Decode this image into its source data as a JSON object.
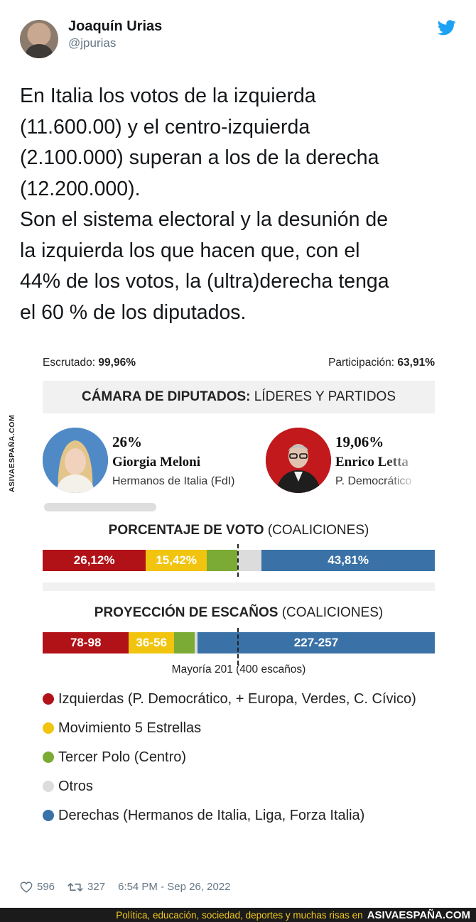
{
  "tweet": {
    "display_name": "Joaquín Urias",
    "handle": "@jpurias",
    "text_lines": [
      "En Italia los votos de la izquierda",
      "(11.600.00) y el centro-izquierda",
      "(2.100.000) superan a los de la derecha",
      "(12.200.000).",
      "Son el sistema electoral y la desunión de",
      "la izquierda los que hacen que, con el",
      "44% de los votos, la (ultra)derecha tenga",
      "el 60 % de los diputados."
    ],
    "likes": "596",
    "retweets": "327",
    "timestamp": "6:54 PM - Sep 26, 2022"
  },
  "graphic": {
    "escrutado_label": "Escrutado:",
    "escrutado_value": "99,96%",
    "participacion_label": "Participación:",
    "participacion_value": "63,91%",
    "camara_title_bold": "CÁMARA DE DIPUTADOS:",
    "camara_title_rest": "LÍDERES Y PARTIDOS",
    "leaders": [
      {
        "pct": "26%",
        "name": "Giorgia Meloni",
        "party": "Hermanos de Italia (FdI)"
      },
      {
        "pct": "19,06%",
        "name": "Enrico Letta",
        "party": "P. Democrático"
      }
    ],
    "vote_title_bold": "PORCENTAJE DE VOTO",
    "vote_title_rest": "(COALICIONES)",
    "vote_bar": [
      {
        "key": "izquierdas",
        "value": 26.12,
        "label": "26,12%"
      },
      {
        "key": "m5s",
        "value": 15.42,
        "label": "15,42%"
      },
      {
        "key": "tercer_polo",
        "value": 7.79,
        "label": ""
      },
      {
        "key": "otros",
        "value": 6.1,
        "label": ""
      },
      {
        "key": "derechas",
        "value": 43.81,
        "label": "43,81%"
      }
    ],
    "seats_title_bold": "PROYECCIÓN DE ESCAÑOS",
    "seats_title_rest": "(COALICIONES)",
    "seats_bar": [
      {
        "key": "izquierdas",
        "value": 88,
        "label": "78-98"
      },
      {
        "key": "m5s",
        "value": 46,
        "label": "36-56"
      },
      {
        "key": "tercer_polo",
        "value": 21,
        "label": ""
      },
      {
        "key": "otros",
        "value": 3,
        "label": ""
      },
      {
        "key": "derechas",
        "value": 242,
        "label": "227-257"
      }
    ],
    "majority_label": "Mayoría 201 (400 escaños)",
    "legend": [
      {
        "key": "izquierdas",
        "label": "Izquierdas (P. Democrático, + Europa, Verdes, C. Cívico)"
      },
      {
        "key": "m5s",
        "label": "Movimiento 5 Estrellas"
      },
      {
        "key": "tercer_polo",
        "label": "Tercer Polo (Centro)"
      },
      {
        "key": "otros",
        "label": "Otros"
      },
      {
        "key": "derechas",
        "label": "Derechas (Hermanos de Italia, Liga, Forza Italia)"
      }
    ],
    "colors": {
      "izquierdas": "#b11217",
      "m5s": "#f1c40f",
      "tercer_polo": "#7bab34",
      "otros": "#dcdcdc",
      "derechas": "#3a72a8"
    },
    "side_watermark": "ASIVAESPAÑA.COM"
  },
  "banner": {
    "slogan": "Política, educación, sociedad, deportes y muchas risas en",
    "brand": "ASIVAESPAÑA.COM"
  }
}
